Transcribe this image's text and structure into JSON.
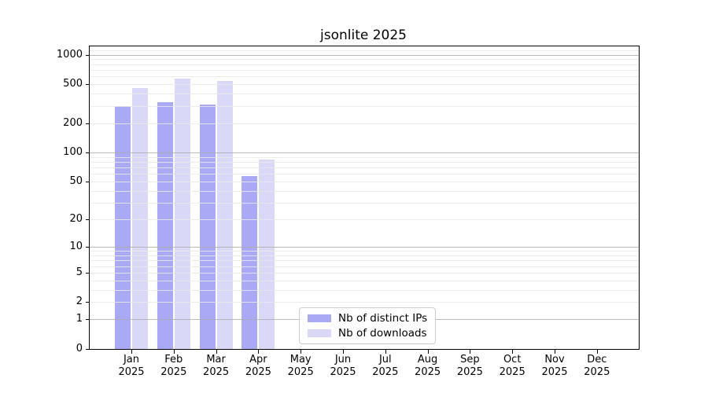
{
  "chart_data": {
    "type": "bar",
    "title": "jsonlite 2025",
    "year_label": "2025",
    "categories": [
      "Jan",
      "Feb",
      "Mar",
      "Apr",
      "May",
      "Jun",
      "Jul",
      "Aug",
      "Sep",
      "Oct",
      "Nov",
      "Dec"
    ],
    "series": [
      {
        "name": "Nb of distinct IPs",
        "color": "#a9a9f5",
        "values": [
          297,
          330,
          312,
          57,
          0,
          0,
          0,
          0,
          0,
          0,
          0,
          0
        ]
      },
      {
        "name": "Nb of downloads",
        "color": "#d9d9f7",
        "values": [
          459,
          570,
          539,
          84,
          0,
          0,
          0,
          0,
          0,
          0,
          0,
          0
        ]
      }
    ],
    "yscale": "log10(1+v)",
    "yticks": [
      0,
      1,
      2,
      5,
      10,
      20,
      50,
      100,
      200,
      500,
      1000
    ],
    "grid_major": [
      1,
      10,
      100,
      1000
    ],
    "grid_minor": [
      2,
      3,
      4,
      5,
      6,
      7,
      8,
      9,
      20,
      30,
      40,
      50,
      60,
      70,
      80,
      90,
      200,
      300,
      400,
      500,
      600,
      700,
      800,
      900,
      1100
    ],
    "ylim": [
      0,
      1215
    ],
    "grid": true,
    "legend_position": "lower center"
  },
  "colors": {
    "grid_major": "rgba(170,170,170,0.8)",
    "grid_minor": "rgba(233,233,233,0.85)",
    "axis": "#000000",
    "background": "#ffffff",
    "legend_border": "#cccccc"
  }
}
